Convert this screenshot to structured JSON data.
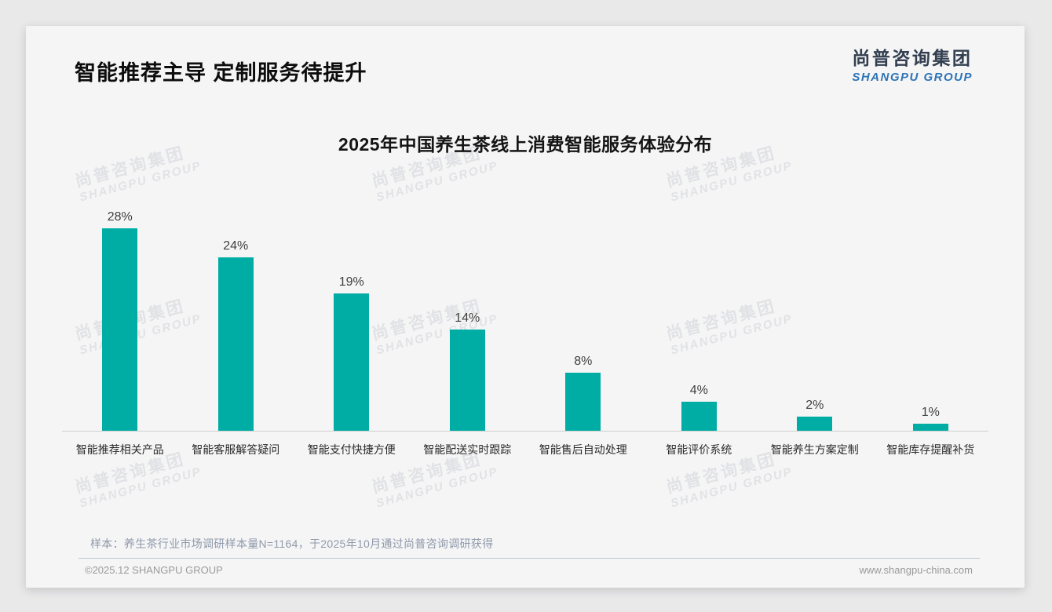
{
  "page": {
    "title": "智能推荐主导 定制服务待提升",
    "logo": {
      "cn": "尚普咨询集团",
      "en": "SHANGPU GROUP"
    },
    "watermark": {
      "cn": "尚普咨询集团",
      "en": "SHANGPU GROUP"
    },
    "note": "样本：养生茶行业市场调研样本量N=1164，于2025年10月通过尚普咨询调研获得",
    "footer": {
      "left": "©2025.12 SHANGPU GROUP",
      "right": "www.shangpu-china.com"
    }
  },
  "chart_data": {
    "type": "bar",
    "title": "2025年中国养生茶线上消费智能服务体验分布",
    "categories": [
      "智能推荐相关产品",
      "智能客服解答疑问",
      "智能支付快捷方便",
      "智能配送实时跟踪",
      "智能售后自动处理",
      "智能评价系统",
      "智能养生方案定制",
      "智能库存提醒补货"
    ],
    "values": [
      28,
      24,
      19,
      14,
      8,
      4,
      2,
      1
    ],
    "unit": "%",
    "bar_color": "#00ADA5",
    "value_label_color": "#3f3f3f",
    "xlabel": "",
    "ylabel": "",
    "ylim": [
      0,
      30
    ],
    "grid": false,
    "legend": false,
    "data_labels": true
  }
}
